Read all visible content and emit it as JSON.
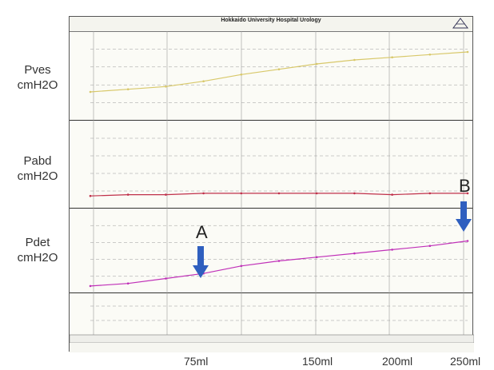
{
  "header": {
    "title": "Hokkaido University Hospital Urology"
  },
  "side_labels": {
    "pves": {
      "name": "Pves",
      "unit": "cmH2O"
    },
    "pabd": {
      "name": "Pabd",
      "unit": "cmH2O"
    },
    "pdet": {
      "name": "Pdet",
      "unit": "cmH2O"
    }
  },
  "annotations": {
    "a": "A",
    "b": "B"
  },
  "volume_labels": [
    "75ml",
    "150ml",
    "200ml",
    "250ml"
  ],
  "colors": {
    "pves": "#d8c86a",
    "pabd": "#c0304a",
    "pdet": "#c030b8",
    "arrow": "#2f5fbf",
    "grid": "#9a9a9a"
  },
  "chart_data": [
    {
      "type": "line",
      "series": [
        {
          "name": "Pves",
          "x": [
            0,
            10,
            20,
            30,
            40,
            50,
            60,
            70,
            80,
            90,
            100
          ],
          "values": [
            18,
            20,
            22,
            26,
            31,
            35,
            39,
            42,
            44,
            46,
            48
          ]
        }
      ],
      "ylim": [
        0,
        60
      ]
    },
    {
      "type": "line",
      "series": [
        {
          "name": "Pabd",
          "x": [
            0,
            10,
            20,
            30,
            40,
            50,
            60,
            70,
            80,
            90,
            100
          ],
          "values": [
            6,
            7,
            7,
            8,
            8,
            8,
            8,
            8,
            7,
            8,
            8
          ]
        }
      ],
      "ylim": [
        0,
        60
      ]
    },
    {
      "type": "line",
      "series": [
        {
          "name": "Pdet",
          "x": [
            0,
            10,
            20,
            30,
            40,
            50,
            60,
            70,
            80,
            90,
            100
          ],
          "values": [
            2,
            4,
            8,
            12,
            18,
            22,
            25,
            28,
            31,
            34,
            38
          ]
        }
      ],
      "ylim": [
        0,
        60
      ]
    }
  ]
}
